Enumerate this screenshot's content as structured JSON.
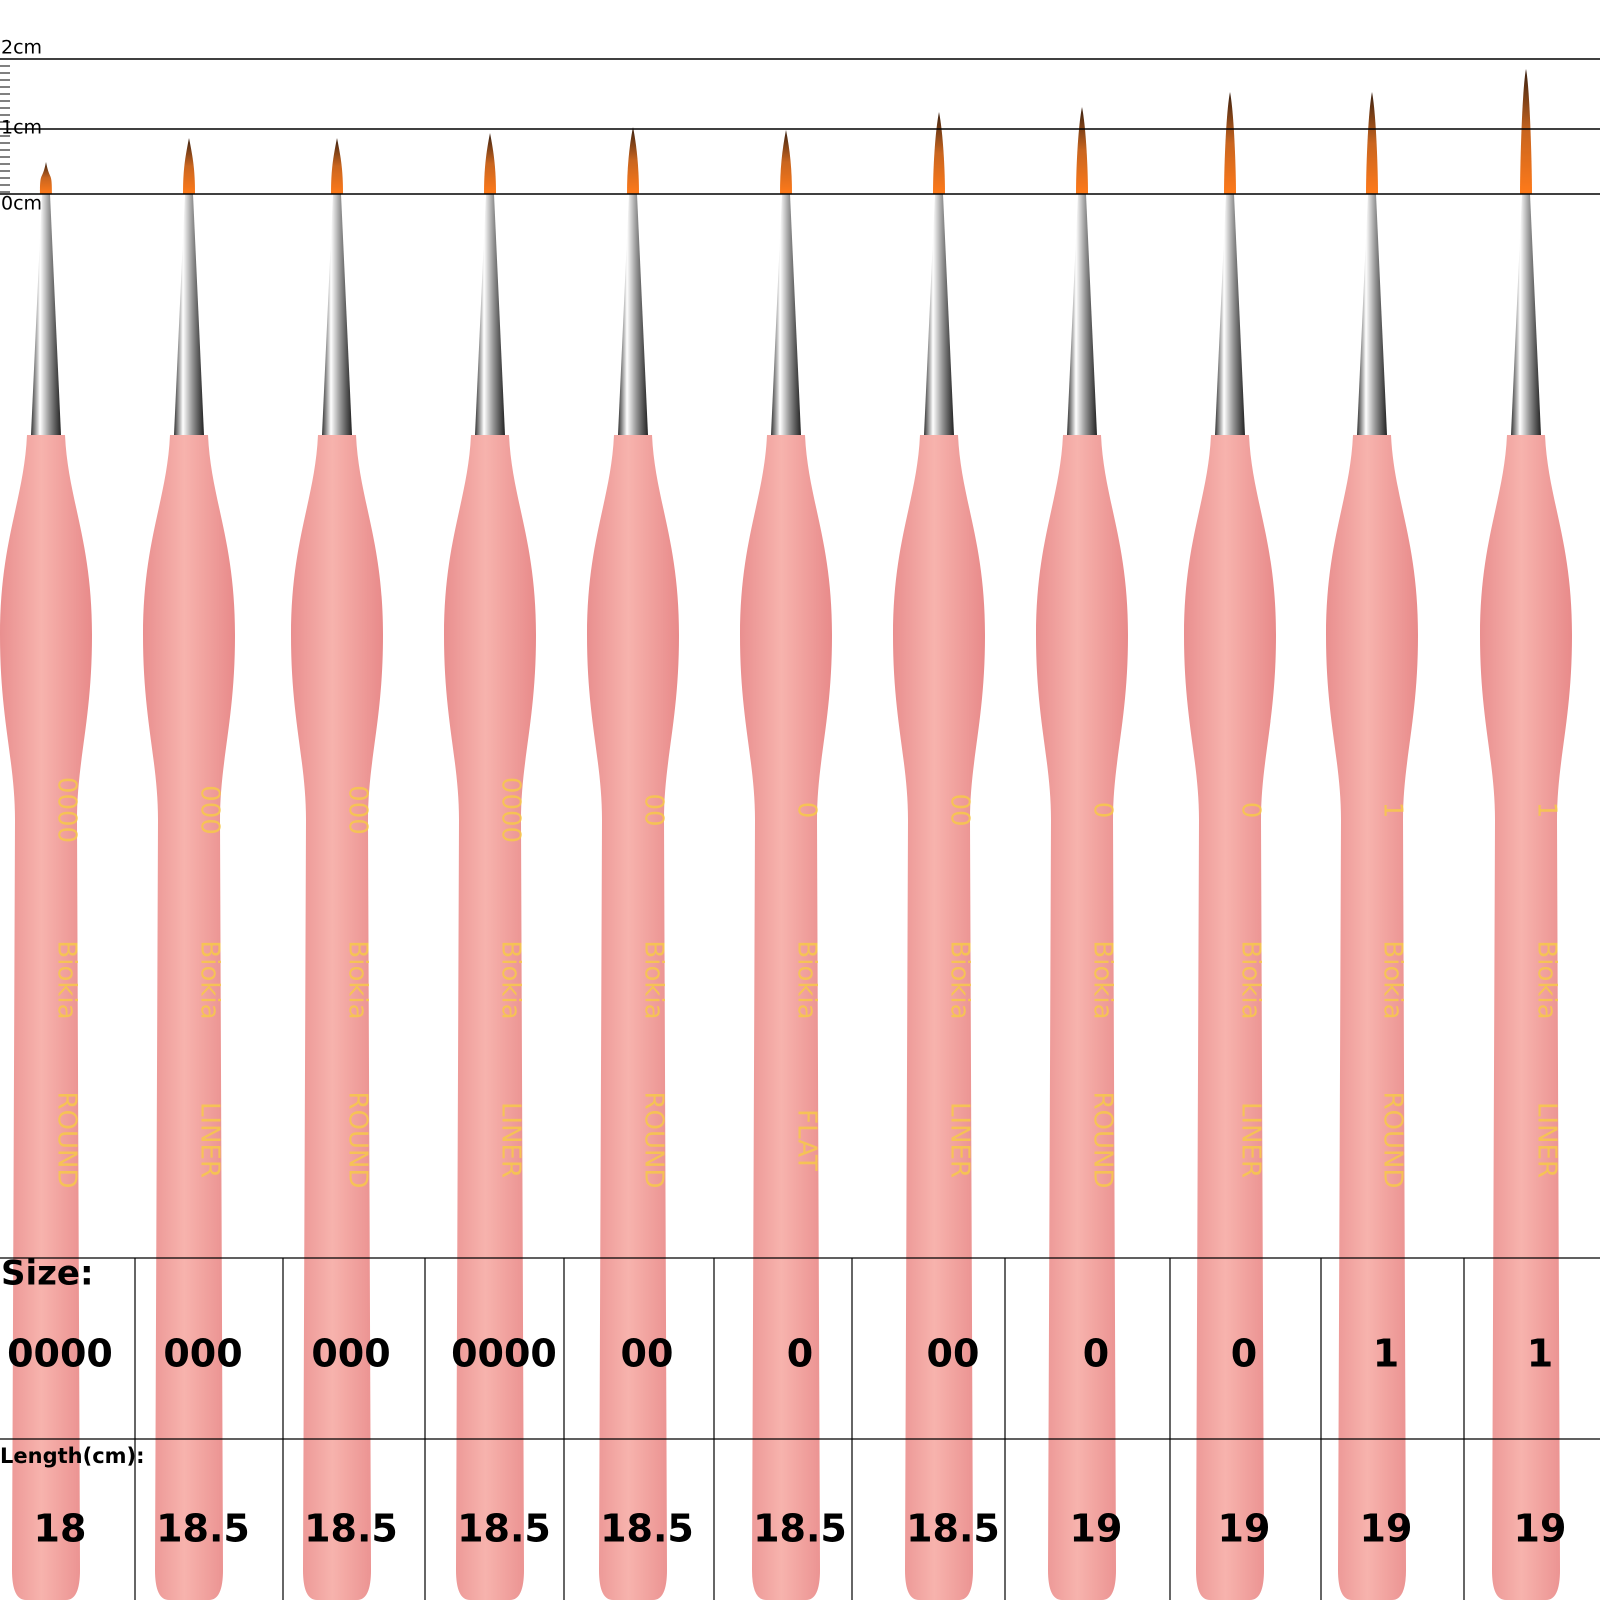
{
  "ruler": {
    "labels": [
      "2cm",
      "1cm",
      "0cm"
    ]
  },
  "brushes": [
    {
      "size": "0000",
      "brand": "Biokia",
      "type": "ROUND"
    },
    {
      "size": "000",
      "brand": "Biokia",
      "type": "LINER"
    },
    {
      "size": "000",
      "brand": "Biokia",
      "type": "ROUND"
    },
    {
      "size": "0000",
      "brand": "Biokia",
      "type": "LINER"
    },
    {
      "size": "00",
      "brand": "Biokia",
      "type": "ROUND"
    },
    {
      "size": "0",
      "brand": "Biokia",
      "type": "FLAT"
    },
    {
      "size": "00",
      "brand": "Biokia",
      "type": "LINER"
    },
    {
      "size": "0",
      "brand": "Biokia",
      "type": "ROUND"
    },
    {
      "size": "0",
      "brand": "Biokia",
      "type": "LINER"
    },
    {
      "size": "1",
      "brand": "Biokia",
      "type": "ROUND"
    },
    {
      "size": "1",
      "brand": "Biokia",
      "type": "LINER"
    }
  ],
  "table": {
    "size_label": "Size:",
    "sizes": [
      "0000",
      "000",
      "000",
      "0000",
      "00",
      "0",
      "00",
      "0",
      "0",
      "1",
      "1"
    ],
    "length_label": "Length(cm):",
    "lengths": [
      "18",
      "18.5",
      "18.5",
      "18.5",
      "18.5",
      "18.5",
      "18.5",
      "19",
      "19",
      "19",
      "19"
    ]
  }
}
